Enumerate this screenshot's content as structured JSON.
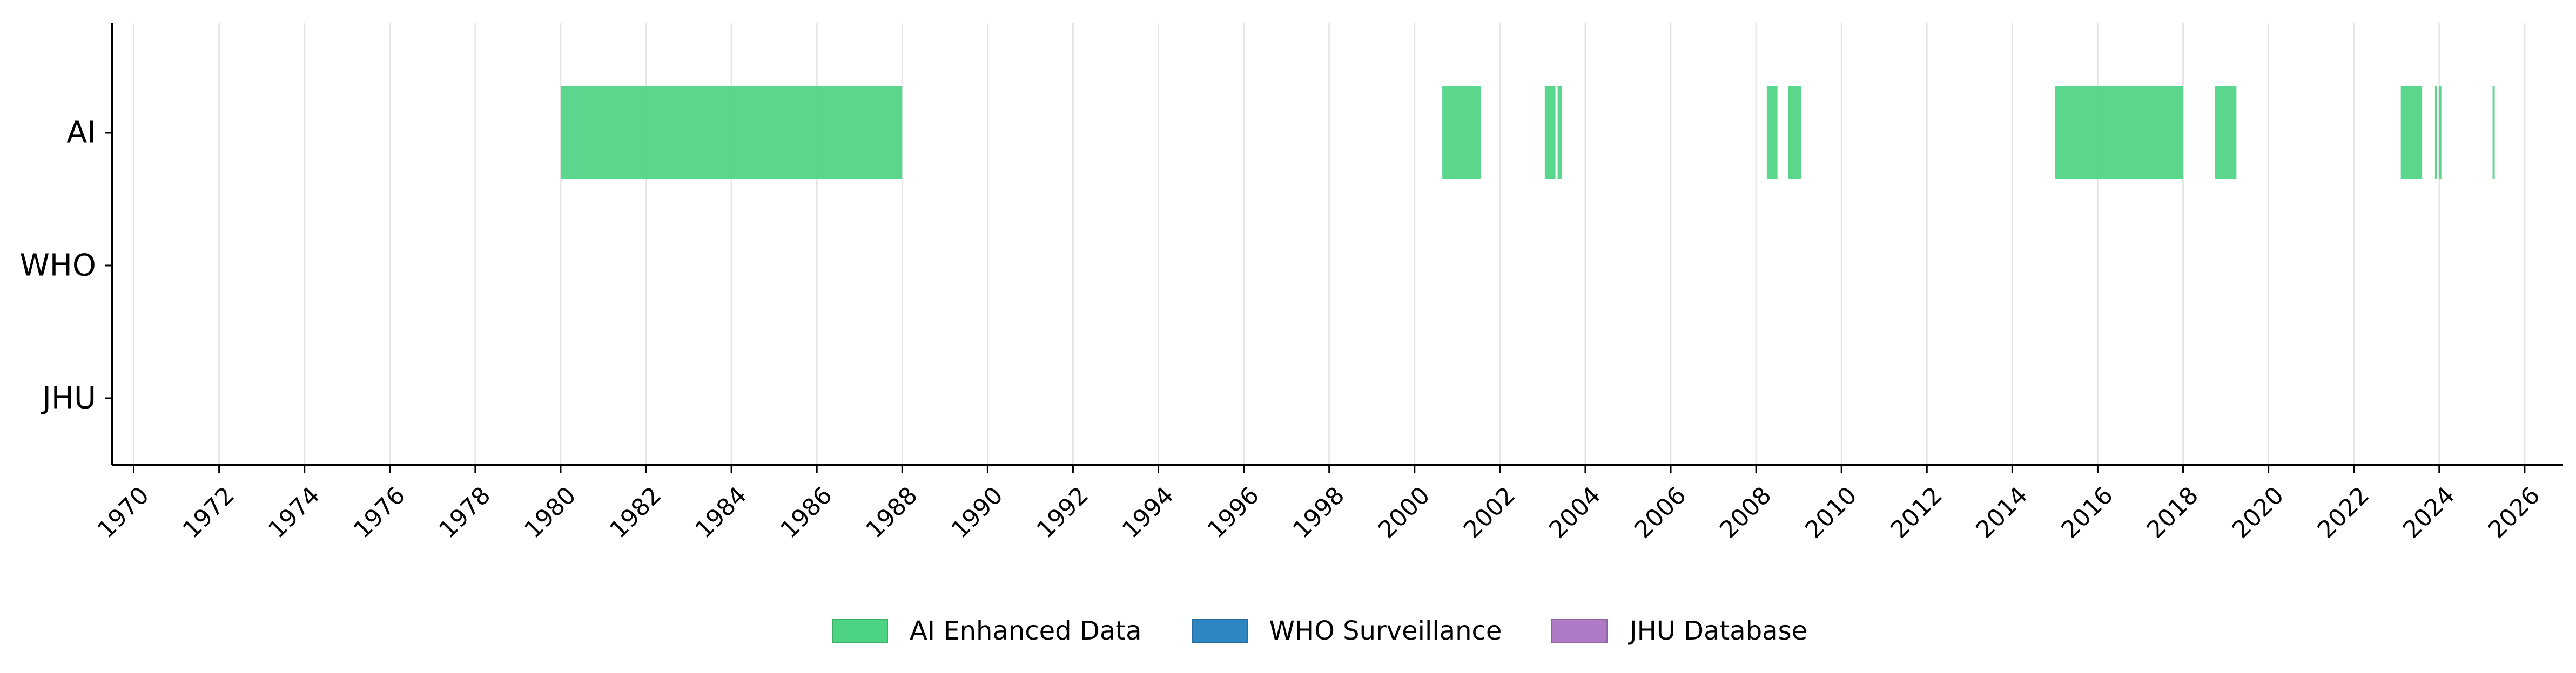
{
  "chart_data": {
    "type": "timeline",
    "title": "",
    "xlabel": "",
    "ylabel": "",
    "xlim": [
      1969.5,
      2026.9
    ],
    "x_ticks": [
      "1970",
      "1972",
      "1974",
      "1976",
      "1978",
      "1980",
      "1982",
      "1984",
      "1986",
      "1988",
      "1990",
      "1992",
      "1994",
      "1996",
      "1998",
      "2000",
      "2002",
      "2004",
      "2006",
      "2008",
      "2010",
      "2012",
      "2014",
      "2016",
      "2018",
      "2020",
      "2022",
      "2024",
      "2026"
    ],
    "categories": [
      "AI",
      "WHO",
      "JHU"
    ],
    "grid": "vertical",
    "legend_placement": "bottom-center",
    "series": [
      {
        "name": "AI Enhanced Data",
        "category": "AI",
        "color": "#4CD483",
        "intervals": [
          [
            1980.0,
            1988.0
          ],
          [
            2000.65,
            2001.55
          ],
          [
            2003.05,
            2003.3
          ],
          [
            2003.35,
            2003.45
          ],
          [
            2008.25,
            2008.5
          ],
          [
            2008.75,
            2009.05
          ],
          [
            2015.0,
            2018.0
          ],
          [
            2018.75,
            2019.25
          ],
          [
            2023.1,
            2023.6
          ],
          [
            2023.9,
            2023.95
          ],
          [
            2024.0,
            2024.05
          ],
          [
            2025.25,
            2025.3
          ]
        ]
      },
      {
        "name": "WHO Surveillance",
        "category": "WHO",
        "color": "#2E86C1",
        "intervals": []
      },
      {
        "name": "JHU Database",
        "category": "JHU",
        "color": "#AF7AC5",
        "intervals": []
      }
    ]
  }
}
